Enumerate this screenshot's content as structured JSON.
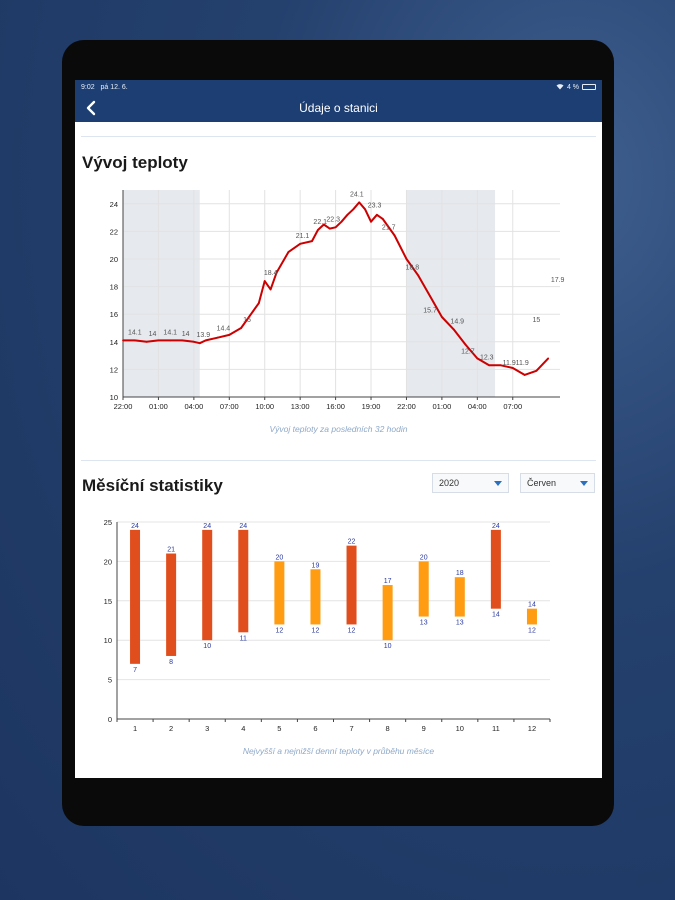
{
  "status": {
    "time": "9:02",
    "date": "pá 12. 6.",
    "battery": "4 %"
  },
  "nav": {
    "title": "Údaje o stanici",
    "back_icon": "chevron-left-icon"
  },
  "temperature": {
    "title": "Vývoj teploty",
    "caption": "Vývoj teploty za posledních 32 hodin"
  },
  "monthly": {
    "title": "Měsíční statistiky",
    "year": "2020",
    "month": "Červen",
    "caption": "Nejvyšší a nejnižší denní teploty v průběhu měsíce"
  },
  "chart_data": [
    {
      "type": "line",
      "title": "Vývoj teploty",
      "x_tick_labels": [
        "22:00",
        "01:00",
        "04:00",
        "07:00",
        "10:00",
        "13:00",
        "16:00",
        "19:00",
        "22:00",
        "01:00",
        "04:00",
        "07:00"
      ],
      "x_hours": [
        0,
        3,
        6,
        9,
        12,
        15,
        18,
        21,
        24,
        27,
        30,
        33
      ],
      "ylim": [
        10,
        25
      ],
      "y_ticks": [
        10,
        12,
        14,
        16,
        18,
        20,
        22,
        24
      ],
      "grid": true,
      "night_bands": [
        [
          0,
          6.5
        ],
        [
          24,
          31.5
        ]
      ],
      "series": [
        {
          "color": "#cc0000",
          "x": [
            0,
            1,
            2,
            3,
            4,
            5,
            6,
            6.5,
            7,
            8,
            9,
            10,
            11,
            11.5,
            12,
            12.5,
            13,
            14,
            15,
            16,
            16.5,
            17,
            17.5,
            18,
            18.5,
            19,
            19.5,
            20,
            20.5,
            21,
            21.5,
            22,
            23,
            24,
            25,
            26,
            27,
            28,
            29,
            30,
            31,
            32,
            33,
            34,
            35,
            36
          ],
          "y": [
            14.1,
            14.1,
            14.0,
            14.1,
            14.1,
            14.1,
            14.0,
            13.9,
            14.1,
            14.3,
            14.5,
            15.0,
            16.2,
            16.8,
            18.4,
            17.8,
            19.0,
            20.5,
            21.1,
            21.3,
            22.1,
            22.5,
            22.2,
            22.3,
            22.7,
            23.2,
            23.6,
            24.1,
            23.6,
            22.7,
            23.2,
            22.9,
            21.7,
            20.0,
            18.8,
            17.3,
            15.8,
            14.9,
            13.8,
            12.8,
            12.3,
            12.3,
            12.1,
            11.6,
            11.9,
            12.8
          ]
        }
      ],
      "data_labels": [
        {
          "x": 1,
          "y": 14.1,
          "label": "14.1"
        },
        {
          "x": 2.5,
          "y": 14.0,
          "label": "14"
        },
        {
          "x": 4,
          "y": 14.1,
          "label": "14.1"
        },
        {
          "x": 5.3,
          "y": 14.0,
          "label": "14"
        },
        {
          "x": 6.8,
          "y": 13.9,
          "label": "13.9"
        },
        {
          "x": 8.5,
          "y": 14.4,
          "label": "14.4"
        },
        {
          "x": 10.5,
          "y": 15.0,
          "label": "15"
        },
        {
          "x": 12.5,
          "y": 18.4,
          "label": "18.4"
        },
        {
          "x": 15.2,
          "y": 21.1,
          "label": "21.1"
        },
        {
          "x": 16.7,
          "y": 22.1,
          "label": "22.1"
        },
        {
          "x": 17.8,
          "y": 22.3,
          "label": "22.3"
        },
        {
          "x": 19.8,
          "y": 24.1,
          "label": "24.1"
        },
        {
          "x": 21.3,
          "y": 23.3,
          "label": "23.3"
        },
        {
          "x": 22.5,
          "y": 21.7,
          "label": "21.7"
        },
        {
          "x": 24.5,
          "y": 18.8,
          "label": "18.8"
        },
        {
          "x": 26,
          "y": 15.7,
          "label": "15.7"
        },
        {
          "x": 28.3,
          "y": 14.9,
          "label": "14.9"
        },
        {
          "x": 29.2,
          "y": 12.7,
          "label": "12.7"
        },
        {
          "x": 30.8,
          "y": 12.3,
          "label": "12.3"
        },
        {
          "x": 32.7,
          "y": 11.9,
          "label": "11.9"
        },
        {
          "x": 33.8,
          "y": 11.9,
          "label": "11.9"
        },
        {
          "x": 35,
          "y": 15.0,
          "label": "15"
        },
        {
          "x": 36.8,
          "y": 17.9,
          "label": "17.9"
        }
      ]
    },
    {
      "type": "bar",
      "title": "Měsíční statistiky",
      "categories": [
        "1",
        "2",
        "3",
        "4",
        "5",
        "6",
        "7",
        "8",
        "9",
        "10",
        "11",
        "12"
      ],
      "high": [
        24,
        21,
        24,
        24,
        20,
        19,
        22,
        17,
        20,
        18,
        24,
        14
      ],
      "low": [
        7,
        8,
        10,
        11,
        12,
        12,
        12,
        10,
        13,
        13,
        14,
        12
      ],
      "colors": [
        "#e04e1d",
        "#e04e1d",
        "#e04e1d",
        "#e04e1d",
        "#ff9c12",
        "#ff9c12",
        "#e04e1d",
        "#ff9c12",
        "#ff9c12",
        "#ff9c12",
        "#e04e1d",
        "#ff9c12"
      ],
      "ylim": [
        0,
        25
      ],
      "y_ticks": [
        0,
        5,
        10,
        15,
        20,
        25
      ],
      "grid": true
    }
  ]
}
